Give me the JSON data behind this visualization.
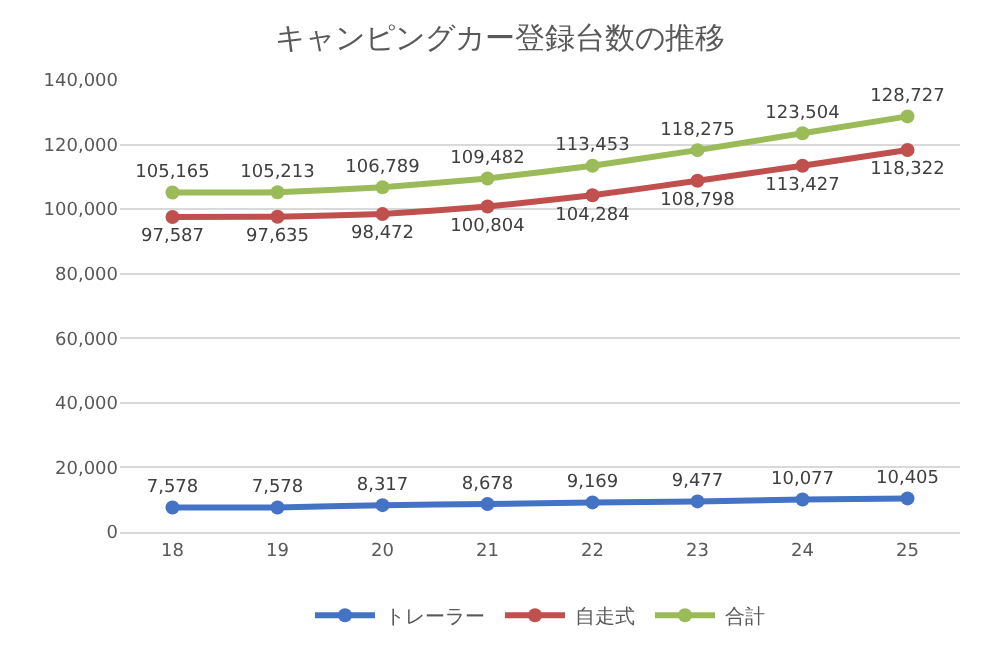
{
  "chart_data": {
    "type": "line",
    "title": "キャンピングカー登録台数の推移",
    "categories": [
      "18",
      "19",
      "20",
      "21",
      "22",
      "23",
      "24",
      "25"
    ],
    "series": [
      {
        "name": "トレーラー",
        "color": "#4472c4",
        "values": [
          7578,
          7578,
          8317,
          8678,
          9169,
          9477,
          10077,
          10405
        ],
        "value_labels": [
          "7,578",
          "7,578",
          "8,317",
          "8,678",
          "9,169",
          "9,477",
          "10,077",
          "10,405"
        ]
      },
      {
        "name": "自走式",
        "color": "#c0504d",
        "values": [
          97587,
          97635,
          98472,
          100804,
          104284,
          108798,
          113427,
          118322
        ],
        "value_labels": [
          "97,587",
          "97,635",
          "98,472",
          "100,804",
          "104,284",
          "108,798",
          "113,427",
          "118,322"
        ]
      },
      {
        "name": "合計",
        "color": "#9bbb59",
        "values": [
          105165,
          105213,
          106789,
          109482,
          113453,
          118275,
          123504,
          128727
        ],
        "value_labels": [
          "105,165",
          "105,213",
          "106,789",
          "109,482",
          "113,453",
          "118,275",
          "123,504",
          "128,727"
        ]
      }
    ],
    "ylim": [
      0,
      140000
    ],
    "yticks": [
      {
        "value": 0,
        "label": "0"
      },
      {
        "value": 20000,
        "label": "20,000"
      },
      {
        "value": 40000,
        "label": "40,000"
      },
      {
        "value": 60000,
        "label": "60,000"
      },
      {
        "value": 80000,
        "label": "80,000"
      },
      {
        "value": 100000,
        "label": "100,000"
      },
      {
        "value": 120000,
        "label": "120,000"
      },
      {
        "value": 140000,
        "label": "140,000"
      }
    ],
    "grid": "y",
    "legend": "bottom",
    "marker": "circle",
    "line_style": "solid"
  }
}
